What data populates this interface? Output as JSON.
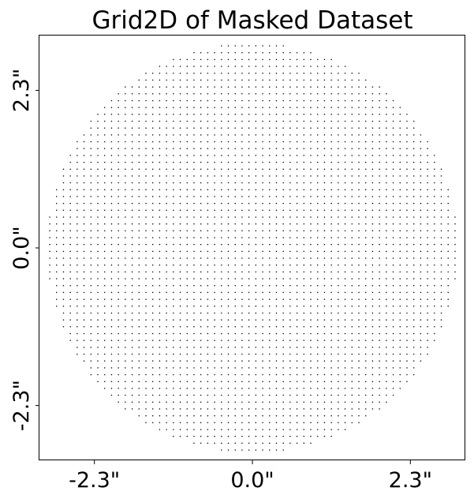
{
  "chart_data": {
    "type": "scatter",
    "title": "Grid2D of Masked Dataset",
    "xlabel": "",
    "ylabel": "",
    "xlim": [
      -3.1,
      3.1
    ],
    "ylim": [
      -3.1,
      3.1
    ],
    "grid": false,
    "legend": "none",
    "xticks": [
      -2.3,
      0.0,
      2.3
    ],
    "xtick_labels": [
      "-2.3\"",
      "0.0\"",
      "2.3\""
    ],
    "yticks": [
      -2.3,
      0.0,
      2.3
    ],
    "ytick_labels": [
      "-2.3\"",
      "0.0\"",
      "2.3\""
    ],
    "grid_points": {
      "pixel_scale": 0.1,
      "mask_shape": "circular",
      "mask_radius": 3.0,
      "center": [
        0.0,
        0.0
      ]
    },
    "point_color": "#000000"
  }
}
